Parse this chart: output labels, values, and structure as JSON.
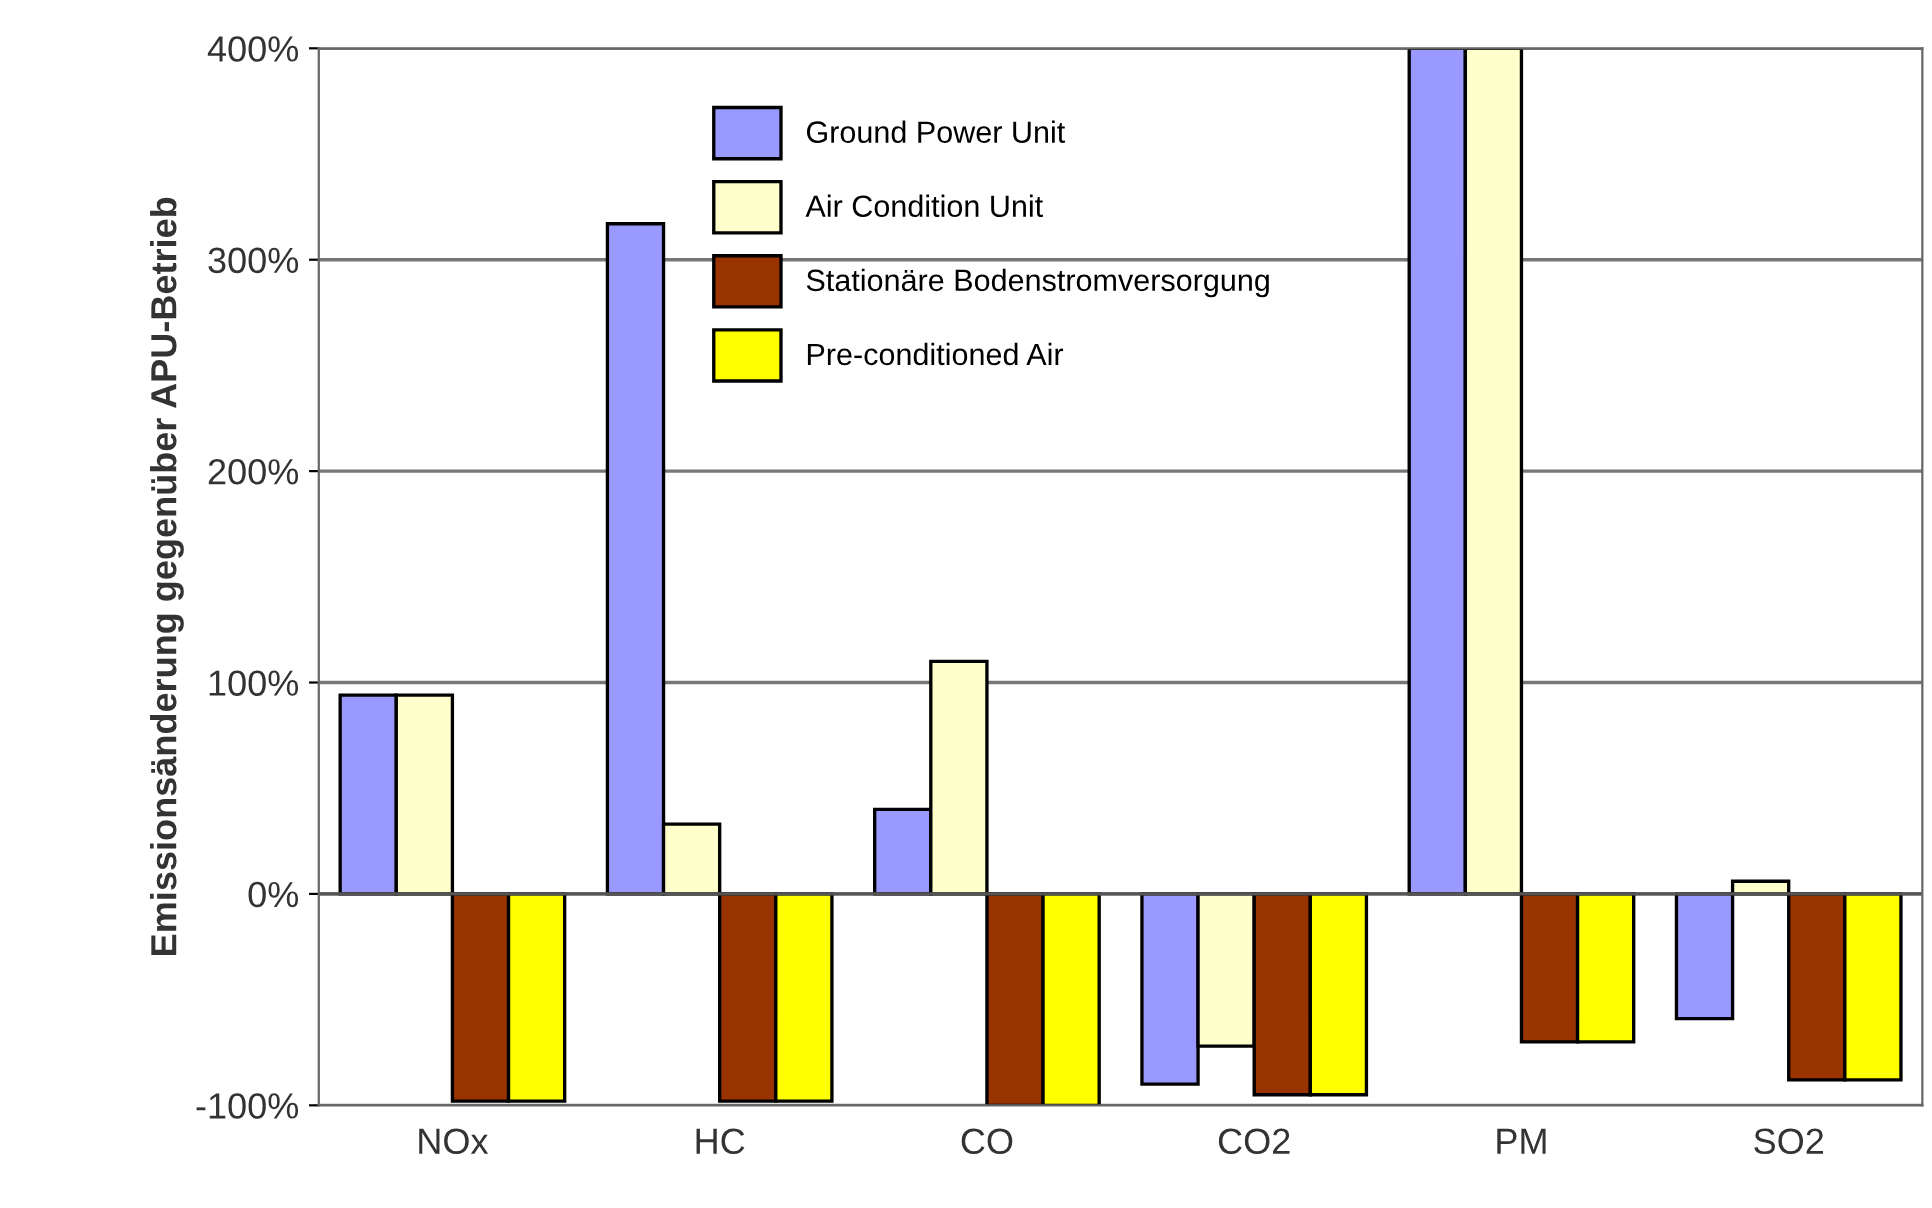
{
  "chart_data": {
    "type": "bar",
    "ylabel": "Emissionsänderung gegenüber APU-Betrieb",
    "categories": [
      "NOx",
      "HC",
      "CO",
      "CO2",
      "PM",
      "SO2"
    ],
    "series": [
      {
        "name": "Ground Power Unit",
        "color": "#9999ff",
        "values": [
          94,
          317,
          40,
          -90,
          400,
          -59
        ]
      },
      {
        "name": "Air Condition Unit",
        "color": "#ffffcc",
        "values": [
          94,
          33,
          110,
          -72,
          400,
          6
        ]
      },
      {
        "name": "Stationäre Bodenstromversorgung",
        "color": "#993300",
        "values": [
          -98,
          -98,
          -100,
          -95,
          -70,
          -88
        ]
      },
      {
        "name": "Pre-conditioned Air",
        "color": "#ffff00",
        "values": [
          -98,
          -98,
          -100,
          -95,
          -70,
          -88
        ]
      }
    ],
    "ylim": [
      -100,
      400
    ],
    "yticks": [
      {
        "value": -100,
        "label": "-100%"
      },
      {
        "value": 0,
        "label": "0%"
      },
      {
        "value": 100,
        "label": "100%"
      },
      {
        "value": 200,
        "label": "200%"
      },
      {
        "value": 300,
        "label": "300%"
      },
      {
        "value": 400,
        "label": "400%"
      }
    ],
    "grid": "y",
    "legend": "top"
  }
}
